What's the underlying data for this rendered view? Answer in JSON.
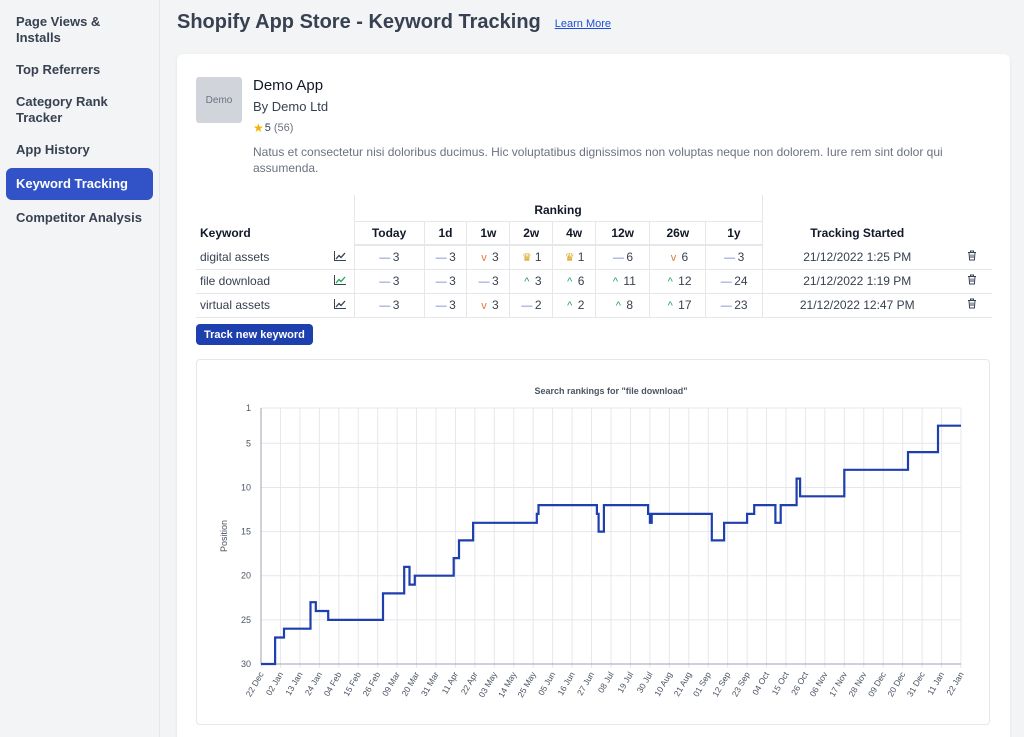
{
  "sidebar": {
    "items": [
      {
        "label": "Page Views & Installs"
      },
      {
        "label": "Top Referrers"
      },
      {
        "label": "Category Rank Tracker"
      },
      {
        "label": "App History"
      },
      {
        "label": "Keyword Tracking",
        "active": true
      },
      {
        "label": "Competitor Analysis"
      }
    ]
  },
  "header": {
    "title": "Shopify App Store - Keyword Tracking",
    "learn_more": "Learn More"
  },
  "app": {
    "logo_text": "Demo",
    "name": "Demo App",
    "developer": "By Demo Ltd",
    "rating": "5",
    "review_count": "(56)",
    "description": "Natus et consectetur nisi doloribus ducimus. Hic voluptatibus dignissimos non voluptas neque non dolorem. Iure rem sint dolor qui assumenda."
  },
  "table": {
    "keyword_header": "Keyword",
    "ranking_header": "Ranking",
    "tracking_header": "Tracking Started",
    "periods": [
      "Today",
      "1d",
      "1w",
      "2w",
      "4w",
      "12w",
      "26w",
      "1y"
    ],
    "rows": [
      {
        "keyword": "digital assets",
        "chart_icon_color": "#374151",
        "ranks": [
          {
            "ind": "same",
            "v": "3"
          },
          {
            "ind": "same",
            "v": "3"
          },
          {
            "ind": "down",
            "v": "3"
          },
          {
            "ind": "trophy",
            "v": "1"
          },
          {
            "ind": "trophy",
            "v": "1"
          },
          {
            "ind": "same",
            "v": "6"
          },
          {
            "ind": "down",
            "v": "6"
          },
          {
            "ind": "same",
            "v": "3"
          }
        ],
        "started": "21/12/2022 1:25 PM"
      },
      {
        "keyword": "file download",
        "chart_icon_color": "#22a35a",
        "ranks": [
          {
            "ind": "same",
            "v": "3"
          },
          {
            "ind": "same",
            "v": "3"
          },
          {
            "ind": "same",
            "v": "3"
          },
          {
            "ind": "up",
            "v": "3"
          },
          {
            "ind": "up",
            "v": "6"
          },
          {
            "ind": "up",
            "v": "11"
          },
          {
            "ind": "up",
            "v": "12"
          },
          {
            "ind": "same",
            "v": "24"
          }
        ],
        "started": "21/12/2022 1:19 PM"
      },
      {
        "keyword": "virtual assets",
        "chart_icon_color": "#374151",
        "ranks": [
          {
            "ind": "same",
            "v": "3"
          },
          {
            "ind": "same",
            "v": "3"
          },
          {
            "ind": "down",
            "v": "3"
          },
          {
            "ind": "same",
            "v": "2"
          },
          {
            "ind": "up",
            "v": "2"
          },
          {
            "ind": "up",
            "v": "8"
          },
          {
            "ind": "up",
            "v": "17"
          },
          {
            "ind": "same",
            "v": "23"
          }
        ],
        "started": "21/12/2022 12:47 PM"
      }
    ],
    "track_button": "Track new keyword"
  },
  "chart_data": {
    "type": "line",
    "title": "Search rankings for \"file download\"",
    "ylabel": "Position",
    "xlabel": "",
    "ylim": [
      1,
      30
    ],
    "y_inverted": true,
    "y_ticks": [
      1,
      5,
      10,
      15,
      20,
      25,
      30
    ],
    "x_tick_labels": [
      "22 Dec",
      "02 Jan",
      "13 Jan",
      "24 Jan",
      "04 Feb",
      "15 Feb",
      "26 Feb",
      "09 Mar",
      "20 Mar",
      "31 Mar",
      "11 Apr",
      "22 Apr",
      "03 May",
      "14 May",
      "25 May",
      "05 Jun",
      "16 Jun",
      "27 Jun",
      "08 Jul",
      "19 Jul",
      "30 Jul",
      "10 Aug",
      "21 Aug",
      "01 Sep",
      "12 Sep",
      "23 Sep",
      "04 Oct",
      "15 Oct",
      "26 Oct",
      "06 Nov",
      "17 Nov",
      "28 Nov",
      "09 Dec",
      "20 Dec",
      "31 Dec",
      "11 Jan",
      "22 Jan"
    ],
    "grid": true,
    "line_color": "#1e3fae",
    "series": [
      {
        "step": true,
        "points": [
          [
            "2022-12-22",
            30
          ],
          [
            "2022-12-30",
            27
          ],
          [
            "2023-01-04",
            26
          ],
          [
            "2023-01-19",
            23
          ],
          [
            "2023-01-22",
            24
          ],
          [
            "2023-01-29",
            25
          ],
          [
            "2023-03-01",
            22
          ],
          [
            "2023-03-13",
            19
          ],
          [
            "2023-03-16",
            21
          ],
          [
            "2023-03-19",
            20
          ],
          [
            "2023-04-10",
            18
          ],
          [
            "2023-04-13",
            16
          ],
          [
            "2023-04-21",
            14
          ],
          [
            "2023-05-27",
            13
          ],
          [
            "2023-05-28",
            12
          ],
          [
            "2023-06-30",
            13
          ],
          [
            "2023-07-01",
            15
          ],
          [
            "2023-07-04",
            12
          ],
          [
            "2023-07-29",
            13
          ],
          [
            "2023-07-30",
            14
          ],
          [
            "2023-07-31",
            13
          ],
          [
            "2023-09-03",
            16
          ],
          [
            "2023-09-10",
            14
          ],
          [
            "2023-09-23",
            13
          ],
          [
            "2023-09-27",
            12
          ],
          [
            "2023-10-09",
            14
          ],
          [
            "2023-10-12",
            12
          ],
          [
            "2023-10-21",
            9
          ],
          [
            "2023-10-23",
            11
          ],
          [
            "2023-11-17",
            8
          ],
          [
            "2023-12-23",
            6
          ],
          [
            "2024-01-09",
            3
          ],
          [
            "2024-01-22",
            3
          ]
        ]
      }
    ]
  }
}
